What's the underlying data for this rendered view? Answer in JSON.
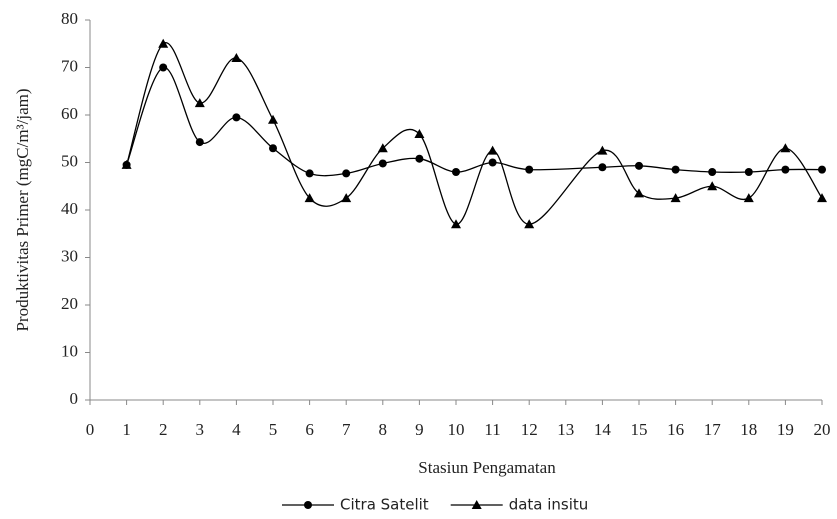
{
  "chart_data": {
    "type": "line",
    "x_label": "Stasiun Pengamatan",
    "y_label": "Produktivitas Primer (mgC/m³/jam)",
    "x": [
      1,
      2,
      3,
      4,
      5,
      6,
      7,
      8,
      9,
      10,
      11,
      12,
      14,
      15,
      16,
      17,
      18,
      19,
      20
    ],
    "series": [
      {
        "name": "Citra Satelit",
        "color": "#000000",
        "marker": "circle",
        "values": [
          49.5,
          70,
          54.3,
          59.5,
          53,
          47.7,
          47.7,
          49.8,
          50.8,
          48,
          50,
          48.5,
          49,
          49.3,
          48.5,
          48,
          48,
          48.5,
          48.5
        ]
      },
      {
        "name": "data insitu",
        "color": "#000000",
        "marker": "triangle",
        "values": [
          49.5,
          75,
          62.5,
          72,
          59,
          42.5,
          42.5,
          53,
          56,
          37,
          52.5,
          37,
          52.5,
          43.5,
          42.5,
          45,
          42.5,
          53,
          42.5
        ]
      }
    ],
    "xlim": [
      0,
      20
    ],
    "xticks": [
      0,
      1,
      2,
      3,
      4,
      5,
      6,
      7,
      8,
      9,
      10,
      11,
      12,
      13,
      14,
      15,
      16,
      17,
      18,
      19,
      20
    ],
    "ylim": [
      0,
      80
    ],
    "yticks": [
      0,
      10,
      20,
      30,
      40,
      50,
      60,
      70,
      80
    ],
    "grid": false,
    "legend": "bottom"
  }
}
